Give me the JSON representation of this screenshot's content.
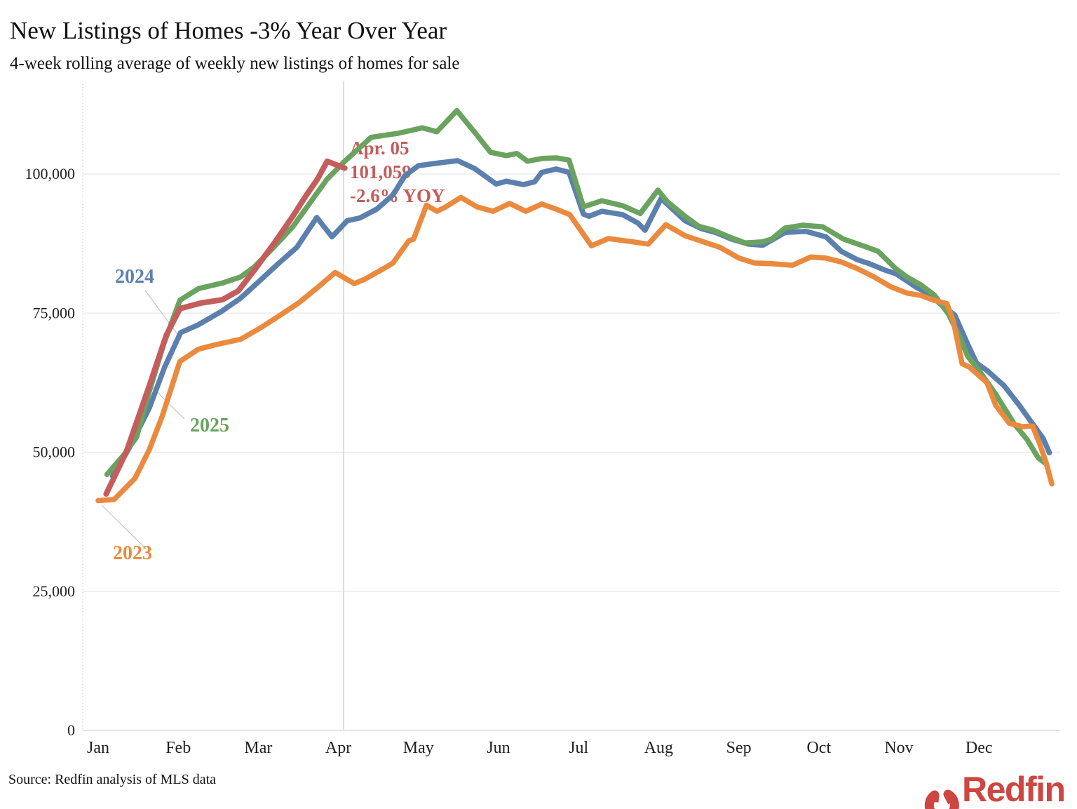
{
  "header": {
    "title": "New Listings of Homes -3% Year Over Year",
    "subtitle": "4-week rolling average of weekly new listings of homes for sale"
  },
  "footer": {
    "source": "Source: Redfin analysis of MLS data",
    "logo_text": "Redfin"
  },
  "colors": {
    "y2023": "#EA8A3E",
    "y2024": "#5C80AE",
    "y2025": "#6AA35F",
    "current": "#C45D5B",
    "logo": "#CE4641",
    "grid": "#EBEBEB",
    "baseline": "#D9D9D9",
    "marker_line": "#DEDEDE",
    "axis_text": "#1F1F1F",
    "leader": "#C4C4C4"
  },
  "chart_data": {
    "type": "line",
    "title": "New Listings of Homes -3% Year Over Year",
    "subtitle": "4-week rolling average of weekly new listings of homes for sale",
    "xlabel": "",
    "ylabel": "",
    "ylim": [
      0,
      118000
    ],
    "grid": "horizontal",
    "legend_position": "inline-labels",
    "x_ticks": [
      "Jan",
      "Feb",
      "Mar",
      "Apr",
      "May",
      "Jun",
      "Jul",
      "Aug",
      "Sep",
      "Oct",
      "Nov",
      "Dec"
    ],
    "y_ticks": [
      {
        "value": 0,
        "label": "0"
      },
      {
        "value": 25000,
        "label": "25,000"
      },
      {
        "value": 50000,
        "label": "50,000"
      },
      {
        "value": 75000,
        "label": "75,000"
      },
      {
        "value": 100000,
        "label": "100,000"
      }
    ],
    "current_date_marker": {
      "month_frac": 3.065,
      "date_label": "Apr. 05"
    },
    "annotation": {
      "lines": [
        "Apr. 05",
        "101,059",
        "-2.6% YOY"
      ],
      "color_key": "current"
    },
    "year_labels": [
      {
        "text": "2024",
        "color_key": "y2024"
      },
      {
        "text": "2025",
        "color_key": "y2025"
      },
      {
        "text": "2023",
        "color_key": "y2023"
      }
    ],
    "latest_point": {
      "date": "Apr. 05",
      "value": 101059,
      "yoy": "-2.6%"
    },
    "series": [
      {
        "name": "2024",
        "color_key": "y2024",
        "points": [
          [
            0.18,
            45700
          ],
          [
            0.39,
            50800
          ],
          [
            0.64,
            58000
          ],
          [
            0.83,
            65300
          ],
          [
            1.03,
            71500
          ],
          [
            1.25,
            72900
          ],
          [
            1.55,
            75400
          ],
          [
            1.78,
            77700
          ],
          [
            2.01,
            80700
          ],
          [
            2.25,
            83900
          ],
          [
            2.48,
            86800
          ],
          [
            2.73,
            92200
          ],
          [
            2.92,
            88700
          ],
          [
            3.11,
            91600
          ],
          [
            3.27,
            92100
          ],
          [
            3.48,
            93700
          ],
          [
            3.68,
            96200
          ],
          [
            3.83,
            99700
          ],
          [
            4.0,
            101500
          ],
          [
            4.26,
            102000
          ],
          [
            4.49,
            102400
          ],
          [
            4.7,
            101000
          ],
          [
            4.97,
            98200
          ],
          [
            5.1,
            98700
          ],
          [
            5.31,
            98100
          ],
          [
            5.45,
            98600
          ],
          [
            5.54,
            100300
          ],
          [
            5.72,
            100900
          ],
          [
            5.88,
            100300
          ],
          [
            6.06,
            92800
          ],
          [
            6.13,
            92400
          ],
          [
            6.29,
            93300
          ],
          [
            6.55,
            92700
          ],
          [
            6.74,
            91200
          ],
          [
            6.83,
            89900
          ],
          [
            7.03,
            95600
          ],
          [
            7.33,
            91600
          ],
          [
            7.53,
            90200
          ],
          [
            7.71,
            89500
          ],
          [
            7.91,
            88300
          ],
          [
            8.12,
            87400
          ],
          [
            8.3,
            87200
          ],
          [
            8.58,
            89500
          ],
          [
            8.84,
            89700
          ],
          [
            9.09,
            88700
          ],
          [
            9.28,
            86100
          ],
          [
            9.48,
            84600
          ],
          [
            9.63,
            83900
          ],
          [
            9.83,
            82700
          ],
          [
            9.96,
            82100
          ],
          [
            10.1,
            80800
          ],
          [
            10.22,
            79600
          ],
          [
            10.36,
            78600
          ],
          [
            10.53,
            76500
          ],
          [
            10.7,
            74600
          ],
          [
            10.85,
            69700
          ],
          [
            10.97,
            66000
          ],
          [
            11.1,
            64700
          ],
          [
            11.31,
            62000
          ],
          [
            11.5,
            58500
          ],
          [
            11.67,
            55100
          ],
          [
            11.8,
            52500
          ],
          [
            11.88,
            49900
          ]
        ]
      },
      {
        "name": "2025",
        "color_key": "y2025",
        "points": [
          [
            0.11,
            46000
          ],
          [
            0.32,
            49500
          ],
          [
            0.48,
            52700
          ],
          [
            0.64,
            61000
          ],
          [
            0.82,
            69500
          ],
          [
            1.02,
            77300
          ],
          [
            1.25,
            79400
          ],
          [
            1.55,
            80400
          ],
          [
            1.78,
            81500
          ],
          [
            1.95,
            83300
          ],
          [
            2.19,
            86800
          ],
          [
            2.43,
            90500
          ],
          [
            2.65,
            94900
          ],
          [
            2.86,
            99100
          ],
          [
            3.08,
            102300
          ],
          [
            3.24,
            104400
          ],
          [
            3.41,
            106600
          ],
          [
            3.74,
            107300
          ],
          [
            4.05,
            108300
          ],
          [
            4.23,
            107600
          ],
          [
            4.48,
            111400
          ],
          [
            4.73,
            107000
          ],
          [
            4.9,
            103900
          ],
          [
            5.1,
            103300
          ],
          [
            5.23,
            103700
          ],
          [
            5.36,
            102300
          ],
          [
            5.55,
            102800
          ],
          [
            5.72,
            102900
          ],
          [
            5.88,
            102500
          ],
          [
            6.06,
            94100
          ],
          [
            6.29,
            95200
          ],
          [
            6.55,
            94300
          ],
          [
            6.77,
            92900
          ],
          [
            6.99,
            97100
          ],
          [
            7.11,
            95000
          ],
          [
            7.33,
            92400
          ],
          [
            7.5,
            90600
          ],
          [
            7.68,
            89900
          ],
          [
            7.88,
            88700
          ],
          [
            8.08,
            87600
          ],
          [
            8.29,
            87800
          ],
          [
            8.41,
            88300
          ],
          [
            8.58,
            90300
          ],
          [
            8.8,
            90800
          ],
          [
            9.05,
            90500
          ],
          [
            9.31,
            88300
          ],
          [
            9.61,
            86800
          ],
          [
            9.74,
            86100
          ],
          [
            9.96,
            83000
          ],
          [
            10.1,
            81500
          ],
          [
            10.27,
            80100
          ],
          [
            10.44,
            78300
          ],
          [
            10.62,
            74800
          ],
          [
            10.75,
            71000
          ],
          [
            10.86,
            67200
          ],
          [
            10.97,
            65300
          ],
          [
            11.21,
            60400
          ],
          [
            11.44,
            55100
          ],
          [
            11.6,
            52300
          ],
          [
            11.74,
            49000
          ],
          [
            11.83,
            48000
          ]
        ]
      },
      {
        "name": "2023",
        "color_key": "y2023",
        "points": [
          [
            0.0,
            41300
          ],
          [
            0.2,
            41500
          ],
          [
            0.46,
            45300
          ],
          [
            0.64,
            50500
          ],
          [
            0.8,
            56500
          ],
          [
            1.02,
            66300
          ],
          [
            1.25,
            68500
          ],
          [
            1.46,
            69300
          ],
          [
            1.78,
            70300
          ],
          [
            2.01,
            72200
          ],
          [
            2.25,
            74400
          ],
          [
            2.51,
            76900
          ],
          [
            2.74,
            79600
          ],
          [
            2.96,
            82300
          ],
          [
            3.2,
            80300
          ],
          [
            3.33,
            81100
          ],
          [
            3.59,
            83200
          ],
          [
            3.68,
            84000
          ],
          [
            3.88,
            88000
          ],
          [
            3.94,
            88300
          ],
          [
            4.1,
            94400
          ],
          [
            4.23,
            93300
          ],
          [
            4.33,
            94000
          ],
          [
            4.53,
            95800
          ],
          [
            4.73,
            94100
          ],
          [
            4.93,
            93300
          ],
          [
            5.14,
            94700
          ],
          [
            5.34,
            93300
          ],
          [
            5.54,
            94600
          ],
          [
            5.72,
            93700
          ],
          [
            5.89,
            92700
          ],
          [
            6.16,
            87100
          ],
          [
            6.37,
            88400
          ],
          [
            6.68,
            87800
          ],
          [
            6.87,
            87400
          ],
          [
            7.09,
            90900
          ],
          [
            7.33,
            88900
          ],
          [
            7.56,
            87800
          ],
          [
            7.77,
            86800
          ],
          [
            8.0,
            84900
          ],
          [
            8.2,
            84000
          ],
          [
            8.41,
            83900
          ],
          [
            8.67,
            83600
          ],
          [
            8.9,
            85100
          ],
          [
            9.08,
            84900
          ],
          [
            9.28,
            84200
          ],
          [
            9.48,
            83000
          ],
          [
            9.69,
            81500
          ],
          [
            9.89,
            79800
          ],
          [
            10.1,
            78600
          ],
          [
            10.27,
            78200
          ],
          [
            10.44,
            77300
          ],
          [
            10.6,
            76700
          ],
          [
            10.68,
            73500
          ],
          [
            10.79,
            65900
          ],
          [
            10.88,
            65300
          ],
          [
            11.1,
            62500
          ],
          [
            11.21,
            58400
          ],
          [
            11.38,
            55200
          ],
          [
            11.54,
            54600
          ],
          [
            11.67,
            54700
          ],
          [
            11.75,
            51800
          ],
          [
            11.84,
            48100
          ],
          [
            11.91,
            44300
          ]
        ]
      },
      {
        "name": "current",
        "color_key": "current",
        "points": [
          [
            0.1,
            42500
          ],
          [
            0.35,
            50000
          ],
          [
            0.64,
            62000
          ],
          [
            0.85,
            71000
          ],
          [
            1.02,
            75800
          ],
          [
            1.28,
            76800
          ],
          [
            1.55,
            77400
          ],
          [
            1.75,
            79000
          ],
          [
            1.95,
            82700
          ],
          [
            2.19,
            87400
          ],
          [
            2.43,
            92400
          ],
          [
            2.6,
            96200
          ],
          [
            2.74,
            99100
          ],
          [
            2.86,
            102300
          ],
          [
            3.08,
            101059
          ]
        ]
      }
    ]
  }
}
